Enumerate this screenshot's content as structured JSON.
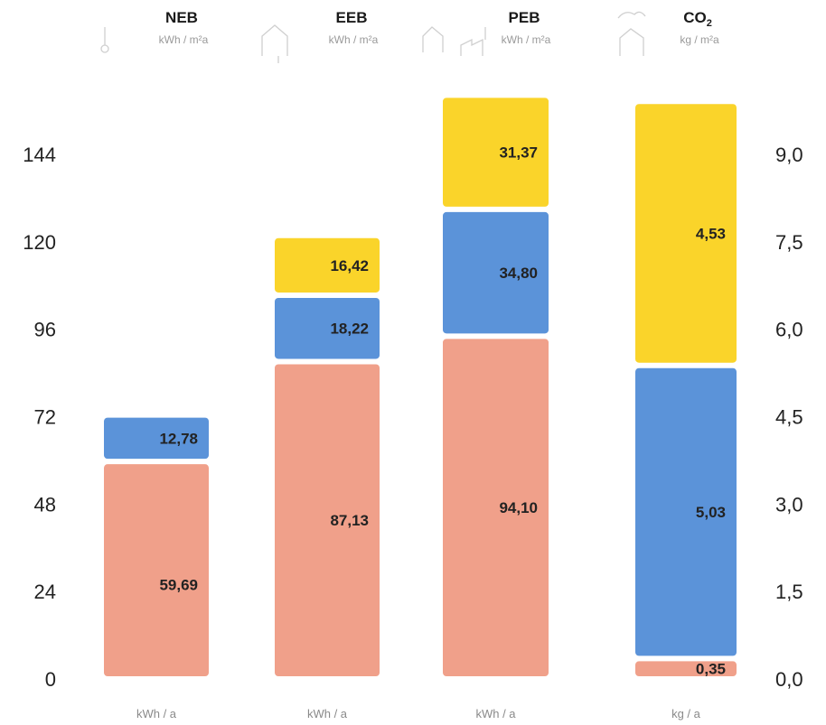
{
  "chart_data": {
    "type": "bar",
    "stacked": true,
    "categories": [
      {
        "title": "NEB",
        "title_sub": "",
        "unit_top": "kWh / m²a",
        "unit_bottom": "kWh / a",
        "icon": "thermometer-icon"
      },
      {
        "title": "EEB",
        "title_sub": "",
        "unit_top": "kWh / m²a",
        "unit_bottom": "kWh / a",
        "icon": "house-icon"
      },
      {
        "title": "PEB",
        "title_sub": "",
        "unit_top": "kWh / m²a",
        "unit_bottom": "kWh / a",
        "icon": "house-factory-icon"
      },
      {
        "title": "CO",
        "title_sub": "2",
        "unit_top": "kg / m²a",
        "unit_bottom": "kg / a",
        "icon": "cloud-house-icon"
      }
    ],
    "series": [
      {
        "color": "#f0a08a",
        "labels": [
          "59,69",
          "87,13",
          "94,10",
          "0,35"
        ],
        "values": [
          59.69,
          87.13,
          94.1,
          0.35
        ]
      },
      {
        "color": "#5b93d9",
        "labels": [
          "12,78",
          "18,22",
          "34,80",
          "5,03"
        ],
        "values": [
          12.78,
          18.22,
          34.8,
          5.03
        ]
      },
      {
        "color": "#fad42a",
        "labels": [
          "",
          "16,42",
          "31,37",
          "4,53"
        ],
        "values": [
          0,
          16.42,
          31.37,
          4.53
        ]
      }
    ],
    "left_axis": {
      "ticks": [
        0,
        24,
        48,
        72,
        96,
        120,
        144
      ],
      "labels": [
        "0",
        "24",
        "48",
        "72",
        "96",
        "120",
        "144"
      ],
      "range": [
        0,
        168
      ]
    },
    "right_axis": {
      "ticks": [
        0,
        1.5,
        3,
        4.5,
        6,
        7.5,
        9
      ],
      "labels": [
        "0,0",
        "1,5",
        "3,0",
        "4,5",
        "6,0",
        "7,5",
        "9,0"
      ],
      "range": [
        0,
        10.5
      ]
    },
    "right_axis_categories": [
      3
    ],
    "grid": false,
    "legend": "none"
  }
}
